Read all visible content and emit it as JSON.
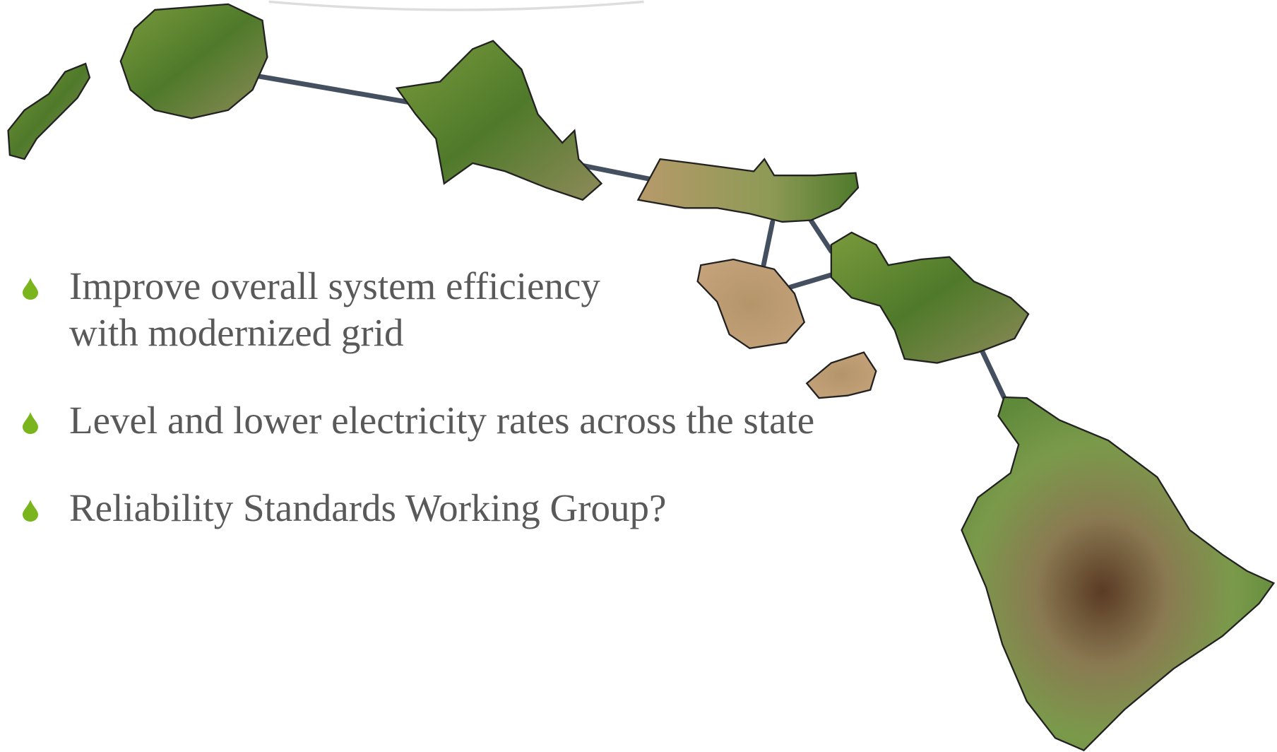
{
  "bullets": [
    "Improve overall system efficiency with modernized grid",
    "Level and lower electricity rates across the state",
    "Reliability Standards Working Group?"
  ]
}
